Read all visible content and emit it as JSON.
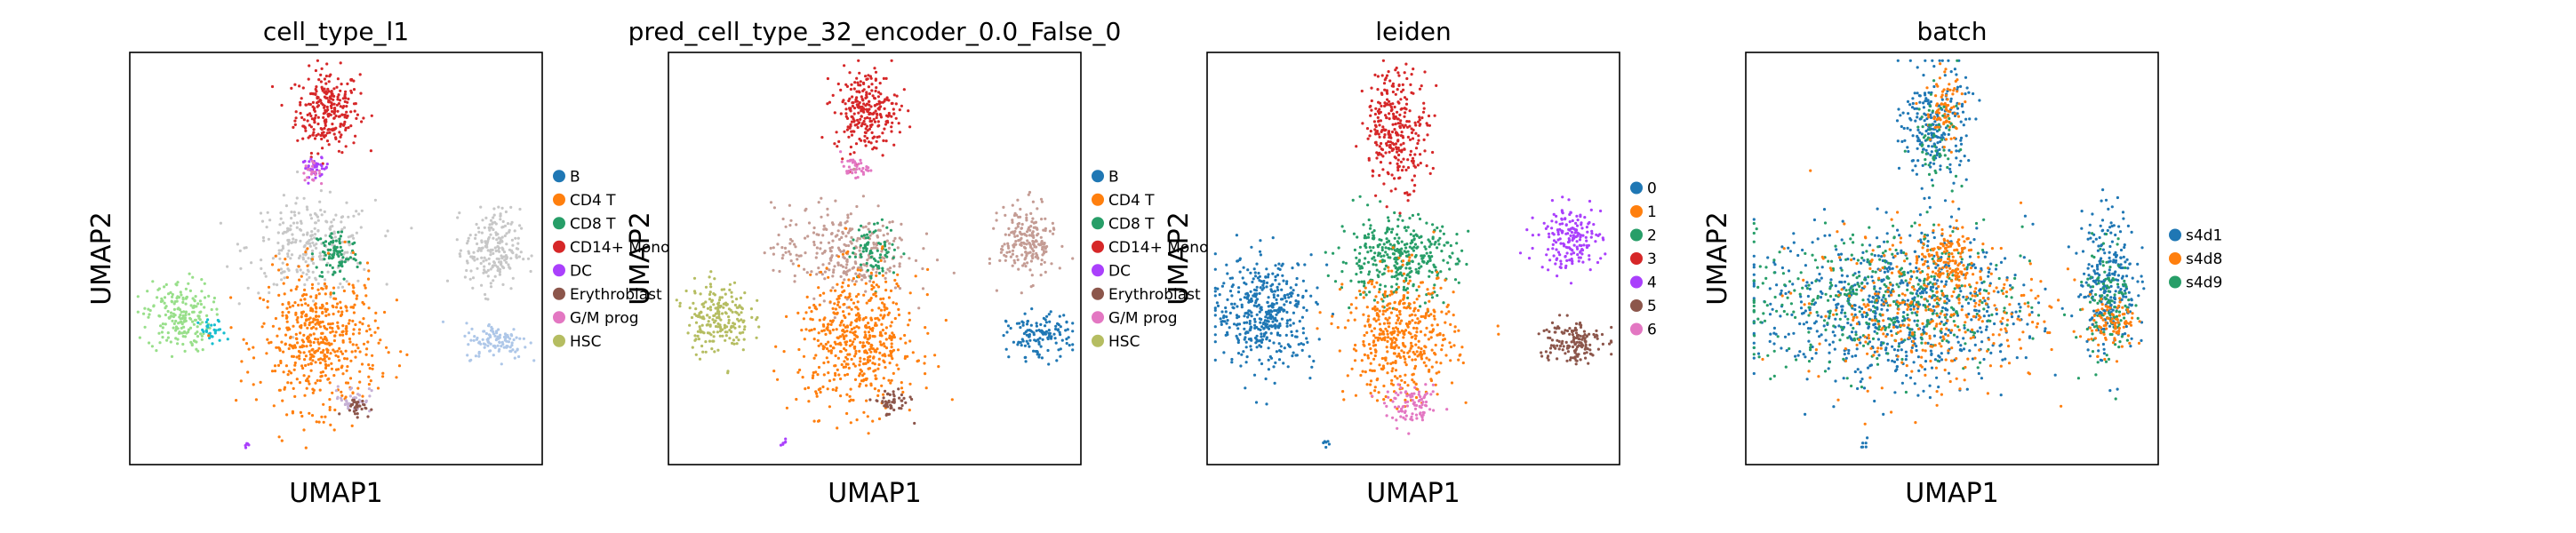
{
  "chart_data": [
    {
      "type": "scatter",
      "title": "cell_type_l1",
      "xlabel": "UMAP1",
      "ylabel": "UMAP2",
      "grid": false,
      "ticks": false,
      "legend_placement": "right",
      "legend": [
        {
          "label": "B",
          "color": "#1f77b4"
        },
        {
          "label": "CD4 T",
          "color": "#ff7f0e"
        },
        {
          "label": "CD8 T",
          "color": "#279e68"
        },
        {
          "label": "CD14+ Mono",
          "color": "#d62728"
        },
        {
          "label": "DC",
          "color": "#aa40fc"
        },
        {
          "label": "Erythroblast",
          "color": "#8c564b"
        },
        {
          "label": "G/M prog",
          "color": "#e377c2"
        },
        {
          "label": "HSC",
          "color": "#b5bd61"
        }
      ],
      "regions": [
        {
          "color": "#d62728",
          "cx": 0.48,
          "cy": 0.86,
          "rx": 0.07,
          "ry": 0.09,
          "n": 260
        },
        {
          "color": "#aa40fc",
          "cx": 0.45,
          "cy": 0.72,
          "rx": 0.03,
          "ry": 0.02,
          "n": 40
        },
        {
          "color": "#e377c2",
          "cx": 0.44,
          "cy": 0.71,
          "rx": 0.02,
          "ry": 0.02,
          "n": 20
        },
        {
          "color": "#c7c7c7",
          "cx": 0.44,
          "cy": 0.53,
          "rx": 0.14,
          "ry": 0.1,
          "n": 260
        },
        {
          "color": "#279e68",
          "cx": 0.5,
          "cy": 0.51,
          "rx": 0.05,
          "ry": 0.06,
          "n": 90
        },
        {
          "color": "#98df8a",
          "cx": 0.12,
          "cy": 0.36,
          "rx": 0.07,
          "ry": 0.08,
          "n": 200
        },
        {
          "color": "#17becf",
          "cx": 0.2,
          "cy": 0.32,
          "rx": 0.03,
          "ry": 0.03,
          "n": 30
        },
        {
          "color": "#ff7f0e",
          "cx": 0.46,
          "cy": 0.3,
          "rx": 0.13,
          "ry": 0.15,
          "n": 520
        },
        {
          "color": "#c5b0d5",
          "cx": 0.54,
          "cy": 0.16,
          "rx": 0.04,
          "ry": 0.03,
          "n": 40
        },
        {
          "color": "#8c564b",
          "cx": 0.55,
          "cy": 0.14,
          "rx": 0.03,
          "ry": 0.02,
          "n": 30
        },
        {
          "color": "#c7c7c7",
          "cx": 0.88,
          "cy": 0.52,
          "rx": 0.06,
          "ry": 0.09,
          "n": 210
        },
        {
          "color": "#aec7e8",
          "cx": 0.89,
          "cy": 0.3,
          "rx": 0.07,
          "ry": 0.04,
          "n": 110
        },
        {
          "color": "#aa40fc",
          "cx": 0.28,
          "cy": 0.05,
          "rx": 0.01,
          "ry": 0.01,
          "n": 6
        }
      ]
    },
    {
      "type": "scatter",
      "title": "pred_cell_type_32_encoder_0.0_False_0",
      "xlabel": "UMAP1",
      "ylabel": "UMAP2",
      "grid": false,
      "ticks": false,
      "legend_placement": "right",
      "legend": [
        {
          "label": "B",
          "color": "#1f77b4"
        },
        {
          "label": "CD4 T",
          "color": "#ff7f0e"
        },
        {
          "label": "CD8 T",
          "color": "#279e68"
        },
        {
          "label": "CD14+ Mono",
          "color": "#d62728"
        },
        {
          "label": "DC",
          "color": "#aa40fc"
        },
        {
          "label": "Erythroblast",
          "color": "#8c564b"
        },
        {
          "label": "G/M prog",
          "color": "#e377c2"
        },
        {
          "label": "HSC",
          "color": "#b5bd61"
        }
      ],
      "regions": [
        {
          "color": "#d62728",
          "cx": 0.48,
          "cy": 0.86,
          "rx": 0.07,
          "ry": 0.09,
          "n": 260
        },
        {
          "color": "#e377c2",
          "cx": 0.45,
          "cy": 0.72,
          "rx": 0.03,
          "ry": 0.02,
          "n": 40
        },
        {
          "color": "#c49c94",
          "cx": 0.42,
          "cy": 0.52,
          "rx": 0.15,
          "ry": 0.1,
          "n": 280
        },
        {
          "color": "#279e68",
          "cx": 0.5,
          "cy": 0.52,
          "rx": 0.05,
          "ry": 0.06,
          "n": 80
        },
        {
          "color": "#b5bd61",
          "cx": 0.12,
          "cy": 0.36,
          "rx": 0.07,
          "ry": 0.08,
          "n": 210
        },
        {
          "color": "#ff7f0e",
          "cx": 0.46,
          "cy": 0.3,
          "rx": 0.13,
          "ry": 0.15,
          "n": 520
        },
        {
          "color": "#8c564b",
          "cx": 0.54,
          "cy": 0.15,
          "rx": 0.04,
          "ry": 0.03,
          "n": 50
        },
        {
          "color": "#c49c94",
          "cx": 0.87,
          "cy": 0.54,
          "rx": 0.06,
          "ry": 0.08,
          "n": 200
        },
        {
          "color": "#1f77b4",
          "cx": 0.9,
          "cy": 0.31,
          "rx": 0.07,
          "ry": 0.05,
          "n": 130
        },
        {
          "color": "#aa40fc",
          "cx": 0.28,
          "cy": 0.05,
          "rx": 0.01,
          "ry": 0.01,
          "n": 6
        }
      ]
    },
    {
      "type": "scatter",
      "title": "leiden",
      "xlabel": "UMAP1",
      "ylabel": "UMAP2",
      "grid": false,
      "ticks": false,
      "legend_placement": "right",
      "legend": [
        {
          "label": "0",
          "color": "#1f77b4"
        },
        {
          "label": "1",
          "color": "#ff7f0e"
        },
        {
          "label": "2",
          "color": "#279e68"
        },
        {
          "label": "3",
          "color": "#d62728"
        },
        {
          "label": "4",
          "color": "#aa40fc"
        },
        {
          "label": "5",
          "color": "#8c564b"
        },
        {
          "label": "6",
          "color": "#e377c2"
        }
      ],
      "regions": [
        {
          "color": "#d62728",
          "cx": 0.46,
          "cy": 0.82,
          "rx": 0.07,
          "ry": 0.13,
          "n": 300
        },
        {
          "color": "#279e68",
          "cx": 0.46,
          "cy": 0.5,
          "rx": 0.13,
          "ry": 0.09,
          "n": 360
        },
        {
          "color": "#1f77b4",
          "cx": 0.14,
          "cy": 0.37,
          "rx": 0.11,
          "ry": 0.12,
          "n": 430
        },
        {
          "color": "#ff7f0e",
          "cx": 0.47,
          "cy": 0.31,
          "rx": 0.12,
          "ry": 0.14,
          "n": 460
        },
        {
          "color": "#e377c2",
          "cx": 0.5,
          "cy": 0.14,
          "rx": 0.06,
          "ry": 0.04,
          "n": 90
        },
        {
          "color": "#aa40fc",
          "cx": 0.88,
          "cy": 0.55,
          "rx": 0.07,
          "ry": 0.07,
          "n": 180
        },
        {
          "color": "#8c564b",
          "cx": 0.88,
          "cy": 0.3,
          "rx": 0.07,
          "ry": 0.05,
          "n": 150
        },
        {
          "color": "#1f77b4",
          "cx": 0.29,
          "cy": 0.05,
          "rx": 0.01,
          "ry": 0.01,
          "n": 6
        }
      ]
    },
    {
      "type": "scatter",
      "title": "batch",
      "xlabel": "UMAP1",
      "ylabel": "UMAP2",
      "grid": false,
      "ticks": false,
      "legend_placement": "right",
      "legend": [
        {
          "label": "s4d1",
          "color": "#1f77b4"
        },
        {
          "label": "s4d8",
          "color": "#ff7f0e"
        },
        {
          "label": "s4d9",
          "color": "#279e68"
        }
      ],
      "regions": [
        {
          "color": "#1f77b4",
          "cx": 0.46,
          "cy": 0.82,
          "rx": 0.07,
          "ry": 0.13,
          "n": 240
        },
        {
          "color": "#ff7f0e",
          "cx": 0.48,
          "cy": 0.86,
          "rx": 0.04,
          "ry": 0.08,
          "n": 80
        },
        {
          "color": "#279e68",
          "cx": 0.46,
          "cy": 0.8,
          "rx": 0.05,
          "ry": 0.1,
          "n": 60
        },
        {
          "color": "#1f77b4",
          "cx": 0.36,
          "cy": 0.38,
          "rx": 0.3,
          "ry": 0.17,
          "n": 700
        },
        {
          "color": "#279e68",
          "cx": 0.34,
          "cy": 0.4,
          "rx": 0.3,
          "ry": 0.16,
          "n": 420
        },
        {
          "color": "#ff7f0e",
          "cx": 0.44,
          "cy": 0.38,
          "rx": 0.26,
          "ry": 0.17,
          "n": 380
        },
        {
          "color": "#ff7f0e",
          "cx": 0.49,
          "cy": 0.5,
          "rx": 0.06,
          "ry": 0.07,
          "n": 120
        },
        {
          "color": "#1f77b4",
          "cx": 0.88,
          "cy": 0.45,
          "rx": 0.06,
          "ry": 0.16,
          "n": 260
        },
        {
          "color": "#279e68",
          "cx": 0.88,
          "cy": 0.4,
          "rx": 0.05,
          "ry": 0.14,
          "n": 110
        },
        {
          "color": "#ff7f0e",
          "cx": 0.89,
          "cy": 0.34,
          "rx": 0.05,
          "ry": 0.06,
          "n": 90
        },
        {
          "color": "#1f77b4",
          "cx": 0.29,
          "cy": 0.05,
          "rx": 0.01,
          "ry": 0.01,
          "n": 6
        }
      ]
    }
  ]
}
